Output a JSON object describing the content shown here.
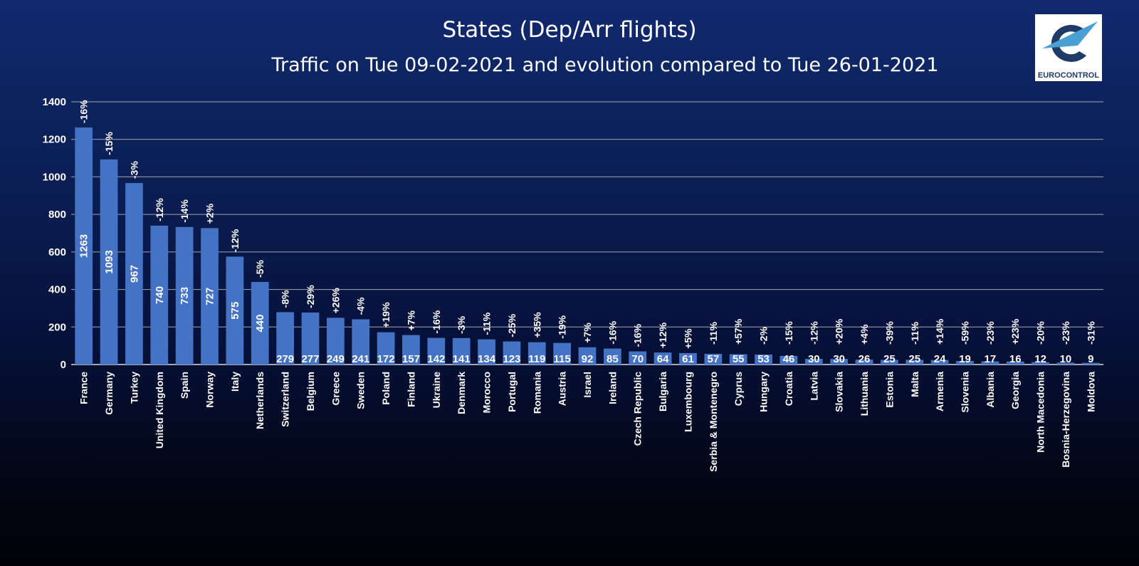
{
  "chart_data": {
    "type": "bar",
    "title": "States (Dep/Arr flights)",
    "subtitle": "Traffic on Tue 09-02-2021 and evolution compared to Tue 26-01-2021",
    "xlabel": "",
    "ylabel": "",
    "ylim": [
      0,
      1400
    ],
    "yticks": [
      0,
      200,
      400,
      600,
      800,
      1000,
      1200,
      1400
    ],
    "grid": true,
    "bar_color": "#4472c4",
    "categories": [
      "France",
      "Germany",
      "Turkey",
      "United Kingdom",
      "Spain",
      "Norway",
      "Italy",
      "Netherlands",
      "Switzerland",
      "Belgium",
      "Greece",
      "Sweden",
      "Poland",
      "Finland",
      "Ukraine",
      "Denmark",
      "Morocco",
      "Portugal",
      "Romania",
      "Austria",
      "Israel",
      "Ireland",
      "Czech Republic",
      "Bulgaria",
      "Luxembourg",
      "Serbia & Montenegro",
      "Cyprus",
      "Hungary",
      "Croatia",
      "Latvia",
      "Slovakia",
      "Lithuania",
      "Estonia",
      "Malta",
      "Armenia",
      "Slovenia",
      "Albania",
      "Georgia",
      "North Macedonia",
      "Bosnia-Herzegovina",
      "Moldova"
    ],
    "values": [
      1263,
      1093,
      967,
      740,
      733,
      727,
      575,
      440,
      279,
      277,
      249,
      241,
      172,
      157,
      142,
      141,
      134,
      123,
      119,
      115,
      92,
      85,
      70,
      64,
      61,
      57,
      55,
      53,
      46,
      30,
      30,
      26,
      25,
      25,
      24,
      19,
      17,
      16,
      12,
      10,
      9
    ],
    "evolution": [
      "-16%",
      "-15%",
      "-3%",
      "-12%",
      "-14%",
      "+2%",
      "-12%",
      "-5%",
      "-8%",
      "-29%",
      "+26%",
      "-4%",
      "+19%",
      "+7%",
      "-16%",
      "-3%",
      "-11%",
      "-25%",
      "+35%",
      "-19%",
      "+7%",
      "-16%",
      "-16%",
      "+12%",
      "+5%",
      "-11%",
      "+57%",
      "-2%",
      "-15%",
      "-12%",
      "+20%",
      "+4%",
      "-39%",
      "-11%",
      "+14%",
      "-59%",
      "-23%",
      "+23%",
      "-20%",
      "-23%",
      "-31%"
    ]
  },
  "logo": {
    "text": "EUROCONTROL"
  }
}
